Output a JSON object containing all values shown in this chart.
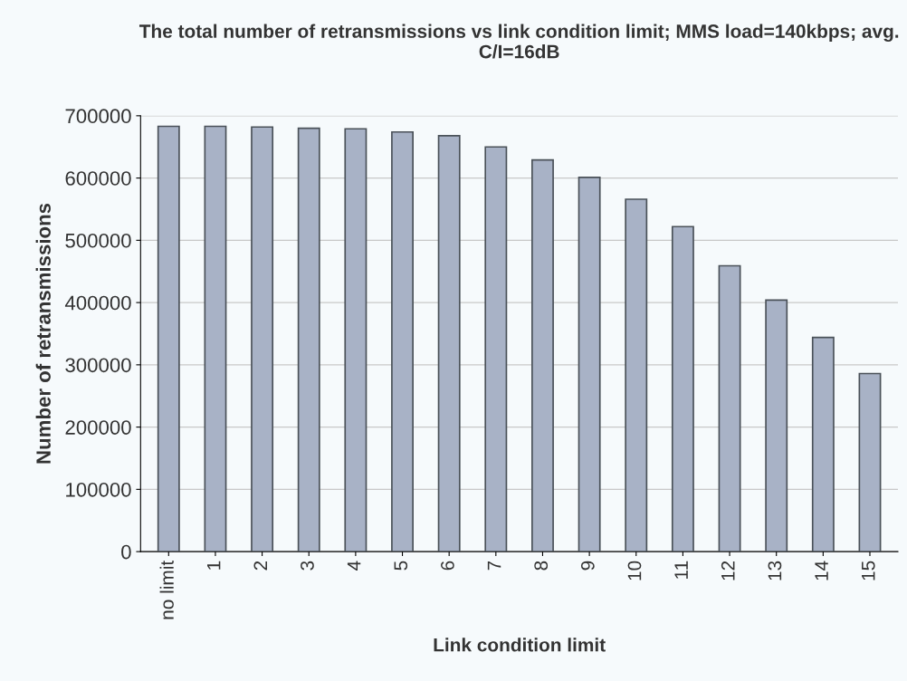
{
  "chart_data": {
    "type": "bar",
    "title": "The total number of retransmissions vs link condition limit; MMS load=140kbps; avg. C/I=16dB",
    "xlabel": "Link condition limit",
    "ylabel": "Number of retransmissions",
    "categories": [
      "no limit",
      "1",
      "2",
      "3",
      "4",
      "5",
      "6",
      "7",
      "8",
      "9",
      "10",
      "11",
      "12",
      "13",
      "14",
      "15"
    ],
    "values": [
      683000,
      683000,
      682000,
      680000,
      679000,
      674000,
      668000,
      650000,
      629000,
      601000,
      566000,
      522000,
      459000,
      404000,
      344000,
      286000
    ],
    "color": "#a8b2c6",
    "ylim": [
      0,
      700000
    ],
    "yticks": [
      0,
      100000,
      200000,
      300000,
      400000,
      500000,
      600000,
      700000
    ],
    "grid": "y"
  }
}
